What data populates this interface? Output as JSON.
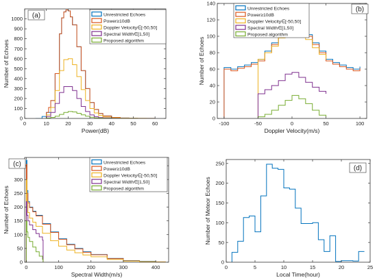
{
  "figure": {
    "background": "#ffffff"
  },
  "panels": [
    {
      "id": "a",
      "label": "(a)",
      "xlabel": "Power(dB)",
      "ylabel": "Number of Echoes",
      "xlim": [
        0,
        65
      ],
      "ylim": [
        0,
        1100
      ],
      "xticks": [
        0,
        10,
        20,
        30,
        40,
        50,
        60
      ],
      "yticks": [
        0,
        100,
        200,
        300,
        400,
        500,
        600,
        700,
        800,
        900,
        1000
      ],
      "legend": {
        "position": "top-right",
        "entries": [
          "Unrestricted Echoes",
          "Power≥10dB",
          "Doppler Velocity∈[-50,50]",
          "Spectral Width∈[1,50]",
          "Proposed algorithm"
        ]
      },
      "chart_data": {
        "type": "line",
        "step": true,
        "series": [
          {
            "name": "Unrestricted Echoes",
            "color": "#0072BD",
            "x": [
              5,
              8,
              10,
              12,
              14,
              16,
              17,
              18,
              19,
              20,
              21,
              22,
              24,
              26,
              28,
              30,
              32,
              34,
              36,
              40,
              44,
              48,
              52,
              56,
              60
            ],
            "y": [
              0,
              20,
              60,
              180,
              450,
              850,
              1010,
              1070,
              1090,
              1080,
              1020,
              940,
              720,
              480,
              300,
              160,
              90,
              50,
              25,
              10,
              4,
              2,
              1,
              1,
              0
            ]
          },
          {
            "name": "Power≥10dB",
            "color": "#D95319",
            "x": [
              10,
              11,
              12,
              14,
              16,
              17,
              18,
              19,
              20,
              21,
              22,
              24,
              26,
              28,
              30,
              32,
              34,
              36,
              40,
              44,
              48,
              52,
              56,
              60
            ],
            "y": [
              60,
              110,
              180,
              450,
              850,
              1010,
              1070,
              1090,
              1080,
              1020,
              940,
              720,
              480,
              300,
              160,
              90,
              50,
              25,
              10,
              4,
              2,
              1,
              1,
              0
            ]
          },
          {
            "name": "Doppler Velocity∈[-50,50]",
            "color": "#EDB120",
            "x": [
              10,
              12,
              14,
              16,
              18,
              20,
              22,
              24,
              26,
              28,
              30,
              32,
              34,
              36,
              40,
              44,
              48,
              52,
              56,
              60
            ],
            "y": [
              35,
              110,
              280,
              480,
              590,
              600,
              540,
              420,
              290,
              180,
              100,
              55,
              30,
              15,
              6,
              3,
              2,
              1,
              0,
              0
            ]
          },
          {
            "name": "Spectral Width∈[1,50]",
            "color": "#7E2F8E",
            "x": [
              10,
              12,
              14,
              16,
              18,
              20,
              22,
              24,
              26,
              28,
              30,
              32,
              34,
              36,
              40,
              44,
              48,
              52
            ],
            "y": [
              20,
              60,
              150,
              260,
              320,
              320,
              280,
              200,
              120,
              70,
              35,
              18,
              9,
              5,
              2,
              1,
              0,
              0
            ]
          },
          {
            "name": "Proposed algorithm",
            "color": "#77AC30",
            "x": [
              10,
              12,
              14,
              16,
              18,
              20,
              22,
              24,
              26,
              28,
              30,
              32,
              34,
              36,
              40,
              44,
              48,
              52
            ],
            "y": [
              4,
              10,
              22,
              40,
              60,
              70,
              65,
              52,
              36,
              22,
              12,
              6,
              3,
              2,
              1,
              0,
              0,
              0
            ]
          }
        ]
      }
    },
    {
      "id": "b",
      "label": "(b)",
      "xlabel": "Doppler Velocity(m/s)",
      "ylabel": "Number of Echoes",
      "xlim": [
        -110,
        110
      ],
      "ylim": [
        0,
        140
      ],
      "xticks": [
        -100,
        -50,
        0,
        50,
        100
      ],
      "yticks": [
        0,
        20,
        40,
        60,
        80,
        100,
        120,
        140
      ],
      "legend": {
        "position": "top-left",
        "entries": [
          "Unrestricted Echoes",
          "Power≥10dB",
          "Doppler Velocity∈[-50,50]",
          "Spectral Width∈[1,50]",
          "Proposed algorithm"
        ]
      },
      "chart_data": {
        "type": "line",
        "step": true,
        "series": [
          {
            "name": "Unrestricted Echoes",
            "color": "#0072BD",
            "x": [
              -100,
              -90,
              -80,
              -70,
              -60,
              -50,
              -40,
              -30,
              -20,
              -10,
              0,
              10,
              20,
              30,
              40,
              50,
              60,
              70,
              80,
              90,
              100
            ],
            "y": [
              62,
              60,
              63,
              65,
              68,
              72,
              82,
              92,
              102,
              112,
              118,
              112,
              102,
              92,
              82,
              72,
              68,
              65,
              62,
              60,
              63
            ]
          },
          {
            "name": "Power≥10dB",
            "color": "#D95319",
            "x": [
              -100,
              -90,
              -80,
              -70,
              -60,
              -50,
              -40,
              -30,
              -20,
              -10,
              0,
              10,
              20,
              30,
              40,
              50,
              60,
              70,
              80,
              90,
              100
            ],
            "y": [
              60,
              58,
              61,
              63,
              66,
              70,
              80,
              90,
              100,
              110,
              116,
              110,
              100,
              90,
              80,
              70,
              66,
              63,
              60,
              58,
              61
            ]
          },
          {
            "name": "Doppler Velocity∈[-50,50]",
            "color": "#EDB120",
            "x": [
              -50,
              -40,
              -30,
              -20,
              -10,
              0,
              10,
              20,
              30,
              40,
              50
            ],
            "y": [
              72,
              80,
              88,
              98,
              108,
              112,
              106,
              96,
              86,
              78,
              72
            ]
          },
          {
            "name": "Spectral Width∈[1,50]",
            "color": "#7E2F8E",
            "x": [
              -50,
              -40,
              -30,
              -20,
              -10,
              0,
              10,
              20,
              30,
              40,
              50
            ],
            "y": [
              30,
              35,
              40,
              46,
              54,
              56,
              50,
              44,
              38,
              33,
              30
            ]
          },
          {
            "name": "Proposed algorithm",
            "color": "#77AC30",
            "x": [
              -50,
              -40,
              -30,
              -20,
              -10,
              0,
              10,
              20,
              30,
              40,
              50
            ],
            "y": [
              2,
              5,
              10,
              16,
              22,
              28,
              24,
              18,
              10,
              4,
              2
            ]
          }
        ]
      }
    },
    {
      "id": "c",
      "label": "(c)",
      "xlabel": "Spectral Width(m/s)",
      "ylabel": "Number of Echoes",
      "xlim": [
        -5,
        440
      ],
      "ylim": [
        0,
        380
      ],
      "xticks": [
        0,
        100,
        200,
        300,
        400
      ],
      "yticks": [
        0,
        50,
        100,
        150,
        200,
        250,
        300,
        350
      ],
      "legend": {
        "position": "top-right",
        "entries": [
          "Unrestricted Echoes",
          "Power≥10dB",
          "Doppler Velocity∈[-50,50]",
          "Spectral Width∈[1,50]",
          "Proposed algorithm"
        ]
      },
      "chart_data": {
        "type": "line",
        "step": true,
        "series": [
          {
            "name": "Unrestricted Echoes",
            "color": "#0072BD",
            "x": [
              0,
              2,
              5,
              10,
              20,
              30,
              50,
              75,
              100,
              125,
              150,
              175,
              200,
              250,
              300,
              350,
              400,
              430
            ],
            "y": [
              370,
              260,
              220,
              200,
              185,
              170,
              140,
              110,
              85,
              65,
              50,
              38,
              28,
              14,
              6,
              3,
              1,
              0
            ]
          },
          {
            "name": "Power≥10dB",
            "color": "#D95319",
            "x": [
              0,
              2,
              5,
              10,
              20,
              30,
              50,
              75,
              100,
              125,
              150,
              175,
              200,
              250,
              300,
              350,
              400,
              430
            ],
            "y": [
              355,
              250,
              215,
              198,
              183,
              168,
              138,
              108,
              83,
              63,
              48,
              36,
              27,
              13,
              5,
              2,
              1,
              0
            ]
          },
          {
            "name": "Doppler Velocity∈[-50,50]",
            "color": "#EDB120",
            "x": [
              0,
              2,
              5,
              10,
              20,
              30,
              50,
              75,
              100,
              125,
              150,
              175,
              200,
              250,
              300,
              350,
              400,
              430
            ],
            "y": [
              300,
              220,
              180,
              160,
              145,
              130,
              105,
              78,
              58,
              44,
              34,
              26,
              20,
              10,
              4,
              2,
              1,
              0
            ]
          },
          {
            "name": "Spectral Width∈[1,50]",
            "color": "#7E2F8E",
            "x": [
              0,
              2,
              5,
              10,
              20,
              30,
              40,
              50,
              52
            ],
            "y": [
              220,
              170,
              150,
              135,
              118,
              104,
              92,
              80,
              0
            ]
          },
          {
            "name": "Proposed algorithm",
            "color": "#77AC30",
            "x": [
              0,
              2,
              5,
              10,
              20,
              30,
              40,
              50,
              52
            ],
            "y": [
              150,
              110,
              90,
              75,
              55,
              38,
              22,
              10,
              0
            ]
          }
        ]
      }
    },
    {
      "id": "d",
      "label": "(d)",
      "xlabel": "Local Time(hour)",
      "ylabel": "Number of Meteor Echoes",
      "xlim": [
        0,
        25
      ],
      "ylim": [
        0,
        260
      ],
      "xticks": [
        0,
        5,
        10,
        15,
        20,
        25
      ],
      "yticks": [
        0,
        50,
        100,
        150,
        200,
        250
      ],
      "legend": null,
      "chart_data": {
        "type": "line",
        "step": true,
        "series": [
          {
            "name": "",
            "color": "#0072BD",
            "x": [
              1,
              2,
              3,
              4,
              5,
              6,
              7,
              8,
              9,
              10,
              11,
              12,
              13,
              14,
              15,
              16,
              17,
              18,
              19,
              20,
              21,
              22,
              23,
              24
            ],
            "y": [
              25,
              53,
              113,
              117,
              77,
              168,
              248,
              238,
              235,
              188,
              185,
              137,
              98,
              98,
              100,
              57,
              27,
              67,
              2,
              4,
              4,
              3,
              27,
              27
            ]
          }
        ]
      }
    }
  ]
}
